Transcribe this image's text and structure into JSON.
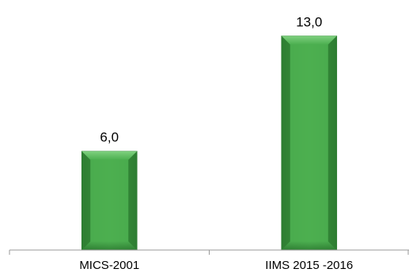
{
  "chart_data": {
    "type": "bar",
    "categories": [
      "MICS-2001",
      "IIMS 2015 -2016"
    ],
    "values": [
      6.0,
      13.0
    ],
    "data_labels": [
      "6,0",
      "13,0"
    ],
    "title": "",
    "xlabel": "",
    "ylabel": "",
    "ylim": [
      0,
      14.7
    ],
    "grid": false,
    "legend": "none",
    "bar_color": "#4caf50",
    "bar_color_dark": "#2e7d32",
    "bar_color_light": "#7fd07f",
    "axis_color": "#999999"
  }
}
